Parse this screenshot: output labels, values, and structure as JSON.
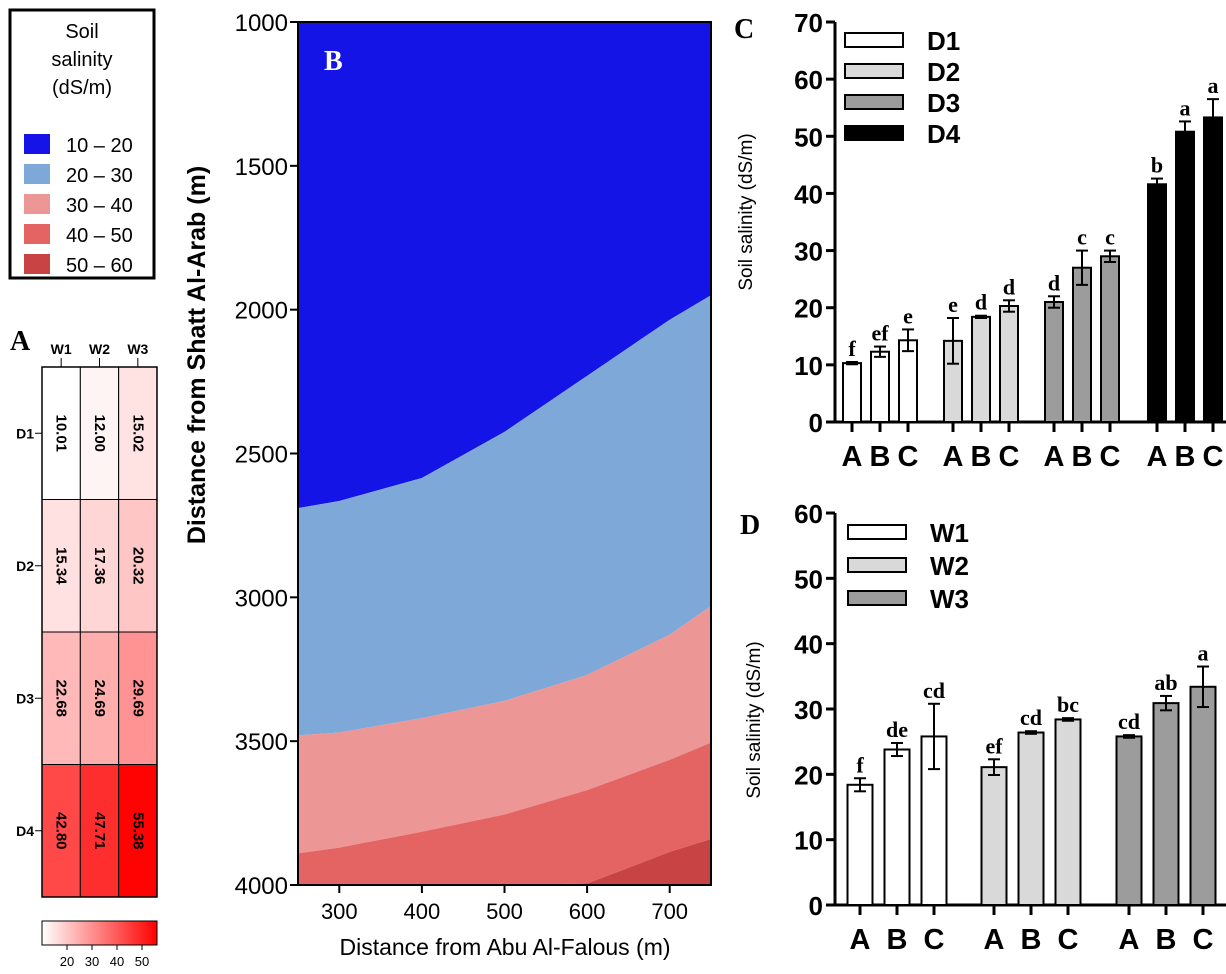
{
  "panel_labels": {
    "a": "A",
    "b": "B",
    "c": "C",
    "d": "D"
  },
  "legend": {
    "title_lines": [
      "Soil",
      "salinity",
      "(dS/m)"
    ],
    "items": [
      {
        "label": "10 – 20",
        "color": "#1414e6"
      },
      {
        "label": "20 – 30",
        "color": "#7ea8d8"
      },
      {
        "label": "30 – 40",
        "color": "#ec9696"
      },
      {
        "label": "40 – 50",
        "color": "#e46464"
      },
      {
        "label": "50 – 60",
        "color": "#c84444"
      }
    ]
  },
  "chart_data": [
    {
      "panel": "A",
      "type": "heatmap",
      "columns": [
        "W1",
        "W2",
        "W3"
      ],
      "rows": [
        "D1",
        "D2",
        "D3",
        "D4"
      ],
      "values": [
        [
          10.01,
          12.0,
          15.02
        ],
        [
          15.34,
          17.36,
          20.32
        ],
        [
          22.68,
          24.69,
          29.69
        ],
        [
          42.8,
          47.71,
          55.38
        ]
      ],
      "value_labels": [
        [
          "10.01",
          "12.00",
          "15.02"
        ],
        [
          "15.34",
          "17.36",
          "20.32"
        ],
        [
          "22.68",
          "24.69",
          "29.69"
        ],
        [
          "42.80",
          "47.71",
          "55.38"
        ]
      ],
      "colorbar": {
        "min": 10,
        "max": 56,
        "ticks": [
          "20",
          "30",
          "40",
          "50"
        ],
        "low_color": "#ffffff",
        "high_color": "#ff0000"
      }
    },
    {
      "panel": "B",
      "type": "area",
      "xlabel": "Distance from Abu Al-Falous (m)",
      "ylabel": "Distance from Shatt Al-Arab (m)",
      "xlim": [
        250,
        750
      ],
      "ylim": [
        1000,
        4000
      ],
      "y_inverted": true,
      "xticks": [
        "300",
        "400",
        "500",
        "600",
        "700"
      ],
      "yticks": [
        "1000",
        "1500",
        "2000",
        "2500",
        "3000",
        "3500",
        "4000"
      ],
      "x": [
        250,
        300,
        400,
        500,
        600,
        700,
        750
      ],
      "zones": [
        {
          "range": "10 – 20",
          "color": "#1414e6",
          "lower_boundary_y": [
            2690,
            2665,
            2585,
            2425,
            2230,
            2035,
            1950
          ]
        },
        {
          "range": "20 – 30",
          "color": "#7ea8d8",
          "lower_boundary_y": [
            3480,
            3470,
            3420,
            3360,
            3270,
            3130,
            3030
          ]
        },
        {
          "range": "30 – 40",
          "color": "#ec9696",
          "lower_boundary_y": [
            3890,
            3870,
            3815,
            3755,
            3670,
            3565,
            3505
          ]
        },
        {
          "range": "40 – 50",
          "color": "#e46464",
          "lower_boundary_y": [
            4000,
            4000,
            4000,
            4000,
            3995,
            3885,
            3840
          ]
        },
        {
          "range": "50 – 60",
          "color": "#c84444",
          "lower_boundary_y": [
            4000,
            4000,
            4000,
            4000,
            4000,
            4000,
            4000
          ]
        }
      ]
    },
    {
      "panel": "C",
      "type": "bar",
      "ylabel": "Soil salinity (dS/m)",
      "ylim": [
        0,
        70
      ],
      "yticks": [
        "0",
        "10",
        "20",
        "30",
        "40",
        "50",
        "60",
        "70"
      ],
      "categories": [
        "A",
        "B",
        "C"
      ],
      "series": [
        {
          "name": "D1",
          "color": "#ffffff",
          "values": [
            10.3,
            12.3,
            14.3
          ],
          "errors": [
            0.2,
            0.9,
            1.9
          ],
          "letters": [
            "f",
            "ef",
            "e"
          ]
        },
        {
          "name": "D2",
          "color": "#d9d9d9",
          "values": [
            14.2,
            18.4,
            20.3
          ],
          "errors": [
            4.0,
            0.2,
            1.0
          ],
          "letters": [
            "e",
            "d",
            "d"
          ]
        },
        {
          "name": "D3",
          "color": "#9c9c9c",
          "values": [
            21.0,
            27.0,
            29.0
          ],
          "errors": [
            1.0,
            3.0,
            1.0
          ],
          "letters": [
            "d",
            "c",
            "c"
          ]
        },
        {
          "name": "D4",
          "color": "#000000",
          "values": [
            41.6,
            50.8,
            53.3
          ],
          "errors": [
            1.0,
            1.8,
            3.2
          ],
          "letters": [
            "b",
            "a",
            "a"
          ]
        }
      ]
    },
    {
      "panel": "D",
      "type": "bar",
      "ylabel": "Soil salinity (dS/m)",
      "ylim": [
        0,
        60
      ],
      "yticks": [
        "0",
        "10",
        "20",
        "30",
        "40",
        "50",
        "60"
      ],
      "categories": [
        "A",
        "B",
        "C"
      ],
      "series": [
        {
          "name": "W1",
          "color": "#ffffff",
          "values": [
            18.4,
            23.8,
            25.8
          ],
          "errors": [
            1.0,
            1.0,
            5.0
          ],
          "letters": [
            "f",
            "de",
            "cd"
          ]
        },
        {
          "name": "W2",
          "color": "#d9d9d9",
          "values": [
            21.1,
            26.4,
            28.4
          ],
          "errors": [
            1.2,
            0.2,
            0.2
          ],
          "letters": [
            "ef",
            "cd",
            "bc"
          ]
        },
        {
          "name": "W3",
          "color": "#9c9c9c",
          "values": [
            25.8,
            30.9,
            33.4
          ],
          "errors": [
            0.2,
            1.1,
            3.1
          ],
          "letters": [
            "cd",
            "ab",
            "a"
          ]
        }
      ]
    }
  ]
}
